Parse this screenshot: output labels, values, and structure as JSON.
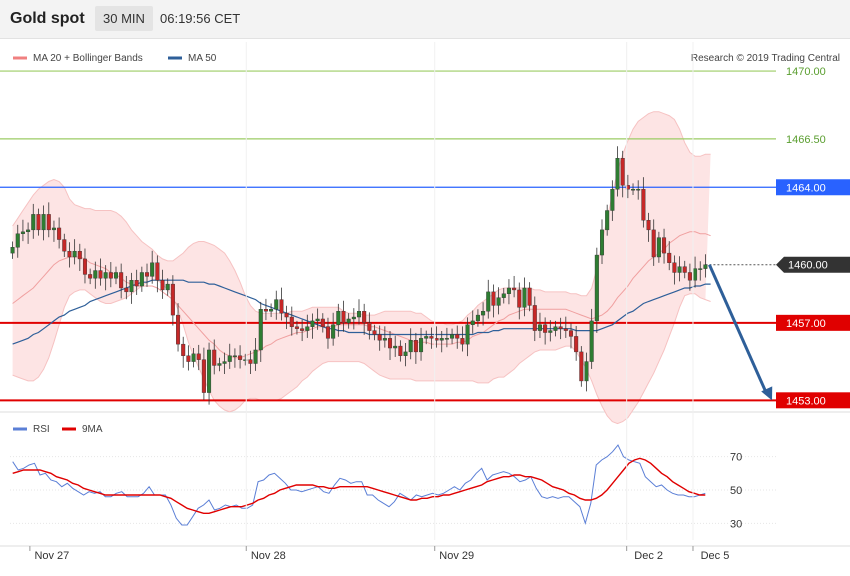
{
  "header": {
    "instrument": "Gold spot",
    "timeframe": "30 MIN",
    "time": "06:19:56 CET"
  },
  "legend": [
    {
      "label": "MA 20 + Bollinger Bands",
      "color": "#f08080"
    },
    {
      "label": "MA 50",
      "color": "#2e5f99"
    }
  ],
  "credit": "Research © 2019 Trading Central",
  "colors": {
    "up": "#2e7d32",
    "down": "#c62828",
    "band": "#fde4e4",
    "ma20": "#f0a0a0",
    "ma50": "#2e5f99",
    "resistance": "#9ccc65",
    "pivot": "#2962ff",
    "support": "#e00000",
    "arrow": "#2e5f99",
    "rsi": "#5b7fd6",
    "rsi_ma": "#e00000"
  },
  "chart_data": [
    {
      "type": "candlestick",
      "y_range": [
        1452.5,
        1471.5
      ],
      "x_labels": [
        "Nov 27",
        "Nov 28",
        "Nov 29",
        "Dec 2",
        "Dec 5"
      ],
      "last_price": "1460.00",
      "levels": [
        {
          "label": "1470.00",
          "value": 1470.0,
          "kind": "resistance"
        },
        {
          "label": "1466.50",
          "value": 1466.5,
          "kind": "resistance"
        },
        {
          "label": "1464.00",
          "value": 1464.0,
          "kind": "pivot"
        },
        {
          "label": "1457.00",
          "value": 1457.0,
          "kind": "support"
        },
        {
          "label": "1453.00",
          "value": 1453.0,
          "kind": "support"
        }
      ],
      "forecast_arrow": {
        "from": 1460.0,
        "to": 1453.0
      },
      "close": [
        1460.9,
        1461.6,
        1461.7,
        1461.8,
        1462.6,
        1461.8,
        1462.6,
        1461.8,
        1461.9,
        1461.3,
        1460.7,
        1460.4,
        1460.7,
        1460.3,
        1459.5,
        1459.3,
        1459.7,
        1459.3,
        1459.6,
        1459.3,
        1459.6,
        1458.8,
        1458.6,
        1459.2,
        1458.9,
        1459.6,
        1459.4,
        1460.1,
        1459.2,
        1458.7,
        1459.0,
        1457.4,
        1455.9,
        1455.3,
        1455.0,
        1455.4,
        1455.1,
        1453.4,
        1455.6,
        1454.8,
        1454.9,
        1455.0,
        1455.3,
        1455.3,
        1455.1,
        1455.1,
        1454.9,
        1455.6,
        1457.7,
        1457.6,
        1457.7,
        1458.2,
        1457.5,
        1457.3,
        1456.8,
        1456.7,
        1456.6,
        1456.8,
        1457.1,
        1457.2,
        1456.8,
        1456.2,
        1456.9,
        1457.6,
        1457.0,
        1457.2,
        1457.3,
        1457.6,
        1457.0,
        1456.6,
        1456.4,
        1456.1,
        1456.2,
        1455.7,
        1455.8,
        1455.3,
        1455.5,
        1456.1,
        1455.5,
        1456.2,
        1456.3,
        1456.2,
        1456.1,
        1456.2,
        1456.2,
        1456.4,
        1456.2,
        1455.9,
        1456.9,
        1457.1,
        1457.4,
        1457.6,
        1458.6,
        1457.9,
        1458.3,
        1458.5,
        1458.8,
        1458.7,
        1457.8,
        1458.8,
        1457.9,
        1456.6,
        1456.9,
        1456.5,
        1456.6,
        1456.8,
        1456.7,
        1456.6,
        1456.3,
        1455.5,
        1454.0,
        1455.0,
        1457.1,
        1460.5,
        1461.8,
        1462.8,
        1463.9,
        1465.5,
        1464.1,
        1463.9,
        1463.9,
        1463.9,
        1462.3,
        1461.8,
        1460.4,
        1461.4,
        1460.6,
        1460.1,
        1459.6,
        1459.9,
        1459.6,
        1459.2,
        1459.8,
        1459.8,
        1460.0
      ],
      "ma20": [
        1458.0,
        1458.2,
        1458.4,
        1458.6,
        1458.8,
        1459.1,
        1459.4,
        1459.7,
        1460.0,
        1460.2,
        1460.3,
        1460.4,
        1460.4,
        1460.4,
        1460.3,
        1460.1,
        1460.0,
        1459.9,
        1459.8,
        1459.6,
        1459.5,
        1459.3,
        1459.1,
        1459.0,
        1458.9,
        1458.9,
        1458.9,
        1458.9,
        1458.8,
        1458.6,
        1458.4,
        1458.2,
        1457.9,
        1457.6,
        1457.3,
        1457.0,
        1456.7,
        1456.4,
        1456.1,
        1455.9,
        1455.6,
        1455.4,
        1455.3,
        1455.2,
        1455.2,
        1455.3,
        1455.4,
        1455.5,
        1455.6,
        1455.8,
        1455.9,
        1456.1,
        1456.2,
        1456.3,
        1456.4,
        1456.5,
        1456.5,
        1456.6,
        1456.7,
        1456.8,
        1456.8,
        1456.8,
        1456.8,
        1456.9,
        1456.9,
        1456.9,
        1456.9,
        1456.9,
        1456.9,
        1456.8,
        1456.8,
        1456.7,
        1456.6,
        1456.5,
        1456.4,
        1456.3,
        1456.2,
        1456.1,
        1456.0,
        1456.0,
        1456.0,
        1455.9,
        1455.9,
        1455.9,
        1455.9,
        1455.9,
        1456.0,
        1456.0,
        1456.1,
        1456.3,
        1456.4,
        1456.5,
        1456.7,
        1456.9,
        1457.1,
        1457.2,
        1457.4,
        1457.5,
        1457.6,
        1457.7,
        1457.7,
        1457.7,
        1457.7,
        1457.7,
        1457.7,
        1457.7,
        1457.7,
        1457.7,
        1457.6,
        1457.5,
        1457.4,
        1457.3,
        1457.2,
        1457.3,
        1457.4,
        1457.6,
        1457.9,
        1458.3,
        1458.6,
        1458.9,
        1459.3,
        1459.6,
        1459.9,
        1460.2,
        1460.4,
        1460.6,
        1460.8,
        1461.1,
        1461.3,
        1461.5,
        1461.6,
        1461.7,
        1461.7,
        1461.6,
        1461.6,
        1461.5
      ],
      "bb_upper": [
        1462.0,
        1462.4,
        1462.8,
        1463.2,
        1463.6,
        1463.9,
        1464.1,
        1464.3,
        1464.4,
        1464.3,
        1464.0,
        1463.4,
        1463.1,
        1463.0,
        1462.9,
        1462.9,
        1462.8,
        1462.8,
        1462.8,
        1462.8,
        1462.7,
        1462.5,
        1462.2,
        1461.8,
        1461.5,
        1461.2,
        1461.0,
        1460.8,
        1460.5,
        1460.3,
        1460.2,
        1460.2,
        1460.4,
        1460.6,
        1460.9,
        1461.1,
        1461.2,
        1461.2,
        1461.1,
        1461.0,
        1460.8,
        1460.6,
        1460.2,
        1459.7,
        1459.1,
        1458.4,
        1457.9,
        1457.6,
        1457.5,
        1457.5,
        1457.5,
        1457.5,
        1457.5,
        1457.5,
        1457.6,
        1457.6,
        1457.6,
        1457.7,
        1457.8,
        1457.8,
        1457.8,
        1457.8,
        1457.8,
        1457.8,
        1457.6,
        1457.5,
        1457.5,
        1457.5,
        1457.4,
        1457.4,
        1457.4,
        1457.5,
        1457.6,
        1457.6,
        1457.6,
        1457.6,
        1457.6,
        1457.6,
        1457.5,
        1457.5,
        1457.3,
        1457.1,
        1457.0,
        1457.0,
        1456.9,
        1456.9,
        1457.0,
        1457.1,
        1457.4,
        1457.6,
        1457.9,
        1458.1,
        1458.3,
        1458.5,
        1458.7,
        1458.8,
        1458.8,
        1458.8,
        1458.8,
        1458.8,
        1458.8,
        1458.7,
        1458.7,
        1458.6,
        1458.6,
        1458.6,
        1458.6,
        1458.6,
        1458.5,
        1458.5,
        1458.4,
        1458.4,
        1458.8,
        1459.8,
        1461.1,
        1462.4,
        1463.6,
        1464.8,
        1465.7,
        1466.4,
        1467.0,
        1467.4,
        1467.6,
        1467.8,
        1467.9,
        1467.9,
        1467.8,
        1467.7,
        1467.5,
        1467.0,
        1466.3,
        1465.8,
        1465.6,
        1465.6,
        1465.7,
        1465.7
      ],
      "bb_lower": [
        1454.3,
        1454.2,
        1454.1,
        1454.0,
        1454.0,
        1454.2,
        1454.6,
        1455.2,
        1456.0,
        1456.9,
        1457.8,
        1458.4,
        1458.6,
        1458.7,
        1458.7,
        1458.5,
        1458.3,
        1458.1,
        1458.0,
        1458.0,
        1458.1,
        1458.2,
        1458.3,
        1458.5,
        1458.7,
        1458.9,
        1459.1,
        1459.2,
        1459.2,
        1459.0,
        1458.7,
        1458.3,
        1457.7,
        1456.9,
        1456.0,
        1455.3,
        1454.7,
        1454.1,
        1453.5,
        1453.0,
        1452.7,
        1452.5,
        1452.4,
        1452.5,
        1452.7,
        1453.0,
        1453.1,
        1453.1,
        1453.0,
        1453.0,
        1453.0,
        1453.0,
        1453.1,
        1453.3,
        1453.5,
        1453.7,
        1454.0,
        1454.2,
        1454.5,
        1454.7,
        1454.9,
        1455.0,
        1455.0,
        1455.0,
        1455.0,
        1455.0,
        1455.0,
        1455.0,
        1454.9,
        1454.7,
        1454.5,
        1454.3,
        1454.2,
        1454.1,
        1454.1,
        1454.1,
        1454.1,
        1454.1,
        1454.0,
        1454.0,
        1454.0,
        1454.0,
        1454.0,
        1454.0,
        1454.0,
        1454.0,
        1454.0,
        1454.0,
        1454.0,
        1454.0,
        1453.9,
        1453.9,
        1453.9,
        1454.1,
        1454.2,
        1454.2,
        1454.4,
        1454.6,
        1454.9,
        1455.1,
        1455.3,
        1455.5,
        1455.6,
        1455.6,
        1455.6,
        1455.6,
        1455.7,
        1455.8,
        1455.8,
        1455.5,
        1455.1,
        1454.6,
        1454.0,
        1453.3,
        1452.7,
        1452.2,
        1451.9,
        1451.8,
        1451.9,
        1452.1,
        1452.5,
        1452.9,
        1453.4,
        1453.9,
        1454.4,
        1455.0,
        1455.6,
        1456.3,
        1457.0,
        1457.8,
        1458.4,
        1458.5,
        1458.5,
        1458.3,
        1458.2,
        1458.1
      ],
      "ma50": [
        1455.9,
        1456.0,
        1456.1,
        1456.2,
        1456.4,
        1456.5,
        1456.7,
        1456.9,
        1457.1,
        1457.3,
        1457.4,
        1457.6,
        1457.7,
        1457.8,
        1457.9,
        1458.1,
        1458.2,
        1458.3,
        1458.4,
        1458.5,
        1458.6,
        1458.7,
        1458.8,
        1458.9,
        1459.0,
        1459.1,
        1459.1,
        1459.2,
        1459.2,
        1459.2,
        1459.2,
        1459.2,
        1459.2,
        1459.2,
        1459.1,
        1459.1,
        1459.1,
        1459.1,
        1459.0,
        1459.0,
        1458.9,
        1458.8,
        1458.7,
        1458.6,
        1458.5,
        1458.4,
        1458.3,
        1458.2,
        1458.0,
        1457.9,
        1457.8,
        1457.7,
        1457.6,
        1457.5,
        1457.4,
        1457.3,
        1457.2,
        1457.1,
        1457.0,
        1456.9,
        1456.8,
        1456.7,
        1456.7,
        1456.6,
        1456.6,
        1456.5,
        1456.5,
        1456.5,
        1456.5,
        1456.4,
        1456.4,
        1456.4,
        1456.4,
        1456.4,
        1456.4,
        1456.4,
        1456.4,
        1456.4,
        1456.4,
        1456.4,
        1456.4,
        1456.4,
        1456.4,
        1456.4,
        1456.4,
        1456.4,
        1456.4,
        1456.4,
        1456.4,
        1456.4,
        1456.5,
        1456.5,
        1456.5,
        1456.6,
        1456.6,
        1456.7,
        1456.7,
        1456.7,
        1456.7,
        1456.7,
        1456.7,
        1456.7,
        1456.7,
        1456.7,
        1456.7,
        1456.7,
        1456.7,
        1456.7,
        1456.7,
        1456.6,
        1456.6,
        1456.6,
        1456.6,
        1456.6,
        1456.7,
        1456.8,
        1456.9,
        1457.1,
        1457.3,
        1457.5,
        1457.6,
        1457.8,
        1458.0,
        1458.1,
        1458.2,
        1458.3,
        1458.4,
        1458.5,
        1458.6,
        1458.7,
        1458.8,
        1458.8,
        1458.9,
        1458.9,
        1459.0,
        1459.0
      ]
    },
    {
      "type": "line",
      "y_range": [
        20,
        80
      ],
      "y_ticks": [
        70,
        50,
        30
      ],
      "series": [
        {
          "name": "RSI",
          "values": [
            67,
            62,
            63,
            65,
            66,
            59,
            60,
            56,
            55,
            52,
            54,
            51,
            49,
            47,
            49,
            48,
            49,
            46,
            46,
            48,
            49,
            46,
            46,
            46,
            48,
            52,
            47,
            47,
            47,
            41,
            33,
            29,
            29,
            34,
            39,
            41,
            44,
            38,
            39,
            41,
            40,
            41,
            39,
            39,
            41,
            55,
            56,
            59,
            60,
            57,
            54,
            50,
            50,
            49,
            50,
            51,
            52,
            49,
            48,
            53,
            57,
            56,
            54,
            55,
            55,
            47,
            47,
            44,
            42,
            40,
            43,
            48,
            46,
            44,
            47,
            46,
            47,
            48,
            47,
            48,
            50,
            52,
            50,
            54,
            56,
            60,
            63,
            56,
            59,
            60,
            61,
            60,
            58,
            55,
            56,
            58,
            51,
            46,
            45,
            46,
            45,
            46,
            46,
            43,
            40,
            30,
            42,
            65,
            68,
            70,
            73,
            77,
            70,
            68,
            67,
            66,
            58,
            55,
            52,
            53,
            50,
            48,
            47,
            47,
            46,
            46,
            47,
            48
          ]
        },
        {
          "name": "9MA",
          "values": [
            60,
            61,
            62,
            62,
            62,
            62,
            61,
            60,
            58,
            57,
            56,
            54,
            53,
            51,
            50,
            49,
            48,
            47,
            47,
            47,
            47,
            47,
            47,
            47,
            47,
            47,
            47,
            47,
            46,
            45,
            43,
            41,
            39,
            38,
            37,
            36,
            36,
            37,
            38,
            39,
            40,
            40,
            40,
            41,
            42,
            44,
            45,
            47,
            48,
            50,
            51,
            52,
            53,
            53,
            53,
            53,
            52,
            52,
            51,
            51,
            52,
            52,
            52,
            52,
            52,
            52,
            51,
            50,
            49,
            48,
            47,
            46,
            45,
            44,
            44,
            45,
            45,
            46,
            46,
            47,
            47,
            48,
            49,
            50,
            51,
            52,
            53,
            55,
            56,
            57,
            58,
            58,
            59,
            59,
            58,
            58,
            57,
            56,
            54,
            52,
            51,
            50,
            48,
            47,
            45,
            44,
            44,
            45,
            47,
            50,
            54,
            58,
            62,
            66,
            68,
            69,
            68,
            66,
            63,
            60,
            58,
            55,
            53,
            51,
            49,
            48,
            47,
            47
          ]
        }
      ]
    }
  ]
}
